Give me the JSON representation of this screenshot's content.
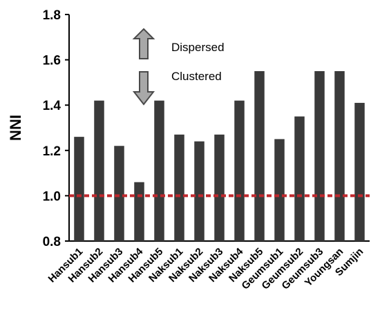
{
  "chart_data": {
    "type": "bar",
    "categories": [
      "Hansub1",
      "Hansub2",
      "Hansub3",
      "Hansub4",
      "Hansub5",
      "Naksub1",
      "Naksub2",
      "Naksub3",
      "Naksub4",
      "Naksub5",
      "Geumsub1",
      "Geumsub2",
      "Geumsub3",
      "Youngsan",
      "Sumjin"
    ],
    "values": [
      1.26,
      1.42,
      1.22,
      1.06,
      1.42,
      1.27,
      1.24,
      1.27,
      1.42,
      1.55,
      1.25,
      1.35,
      1.55,
      1.55,
      1.41
    ],
    "ylabel": "NNI",
    "xlabel": "",
    "ylim": [
      0.8,
      1.8
    ],
    "yticks": [
      "0.8",
      "1.0",
      "1.2",
      "1.4",
      "1.6",
      "1.8"
    ],
    "reference_line": 1.0,
    "grid": false,
    "annotations": {
      "up": "Dispersed",
      "down": "Clustered"
    },
    "colors": {
      "bar": "#3a3a3a",
      "reference_line": "#c0282d",
      "arrow_fill": "#a8a8a8"
    }
  }
}
